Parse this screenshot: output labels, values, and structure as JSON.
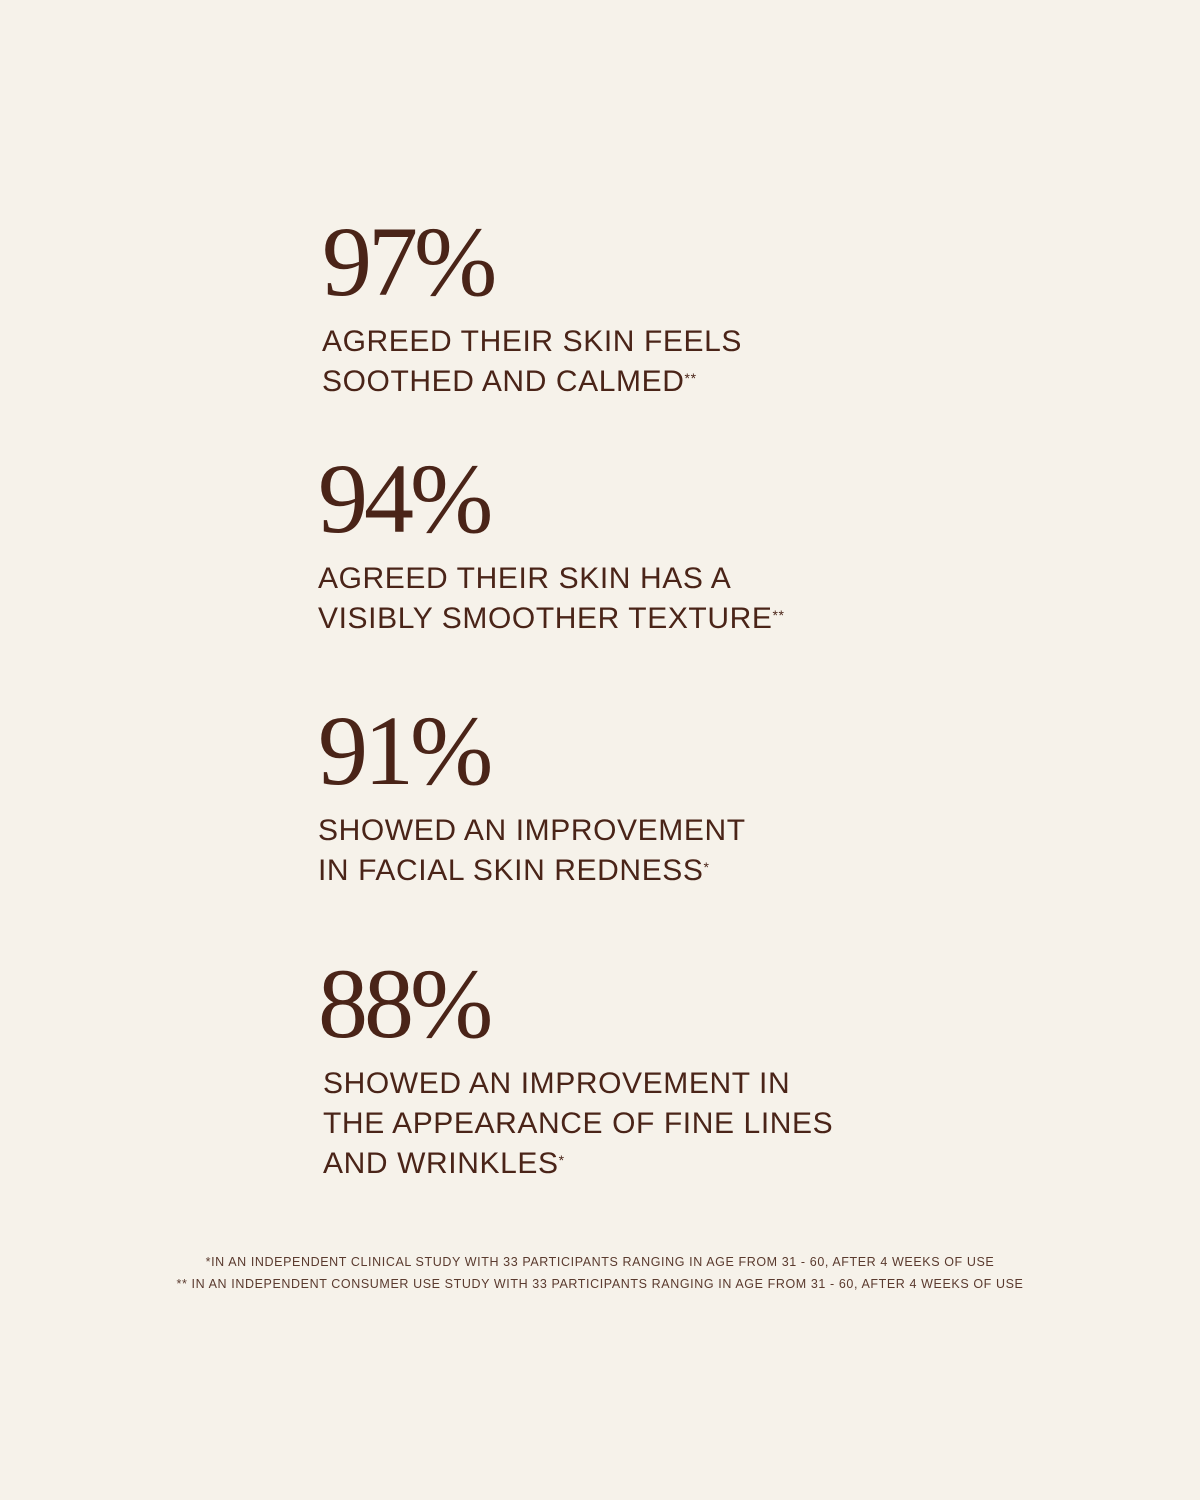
{
  "colors": {
    "background": "#f6f2ea",
    "text": "#4a2418"
  },
  "stats": [
    {
      "value": "97%",
      "lines": [
        "AGREED THEIR SKIN FEELS",
        "SOOTHED AND CALMED"
      ],
      "mark": "**"
    },
    {
      "value": "94%",
      "lines": [
        "AGREED THEIR SKIN HAS A",
        "VISIBLY SMOOTHER TEXTURE"
      ],
      "mark": "**"
    },
    {
      "value": "91%",
      "lines": [
        "SHOWED AN IMPROVEMENT",
        "IN FACIAL SKIN REDNESS"
      ],
      "mark": "*"
    },
    {
      "value": "88%",
      "lines": [
        "SHOWED AN IMPROVEMENT IN",
        "THE APPEARANCE OF FINE LINES",
        "AND WRINKLES"
      ],
      "mark": "*"
    }
  ],
  "footnotes": [
    "*IN AN INDEPENDENT CLINICAL STUDY WITH 33 PARTICIPANTS RANGING IN AGE FROM 31 - 60, AFTER 4 WEEKS OF USE",
    "** IN AN INDEPENDENT CONSUMER USE STUDY WITH 33 PARTICIPANTS RANGING IN AGE FROM 31 - 60, AFTER 4 WEEKS OF USE"
  ]
}
